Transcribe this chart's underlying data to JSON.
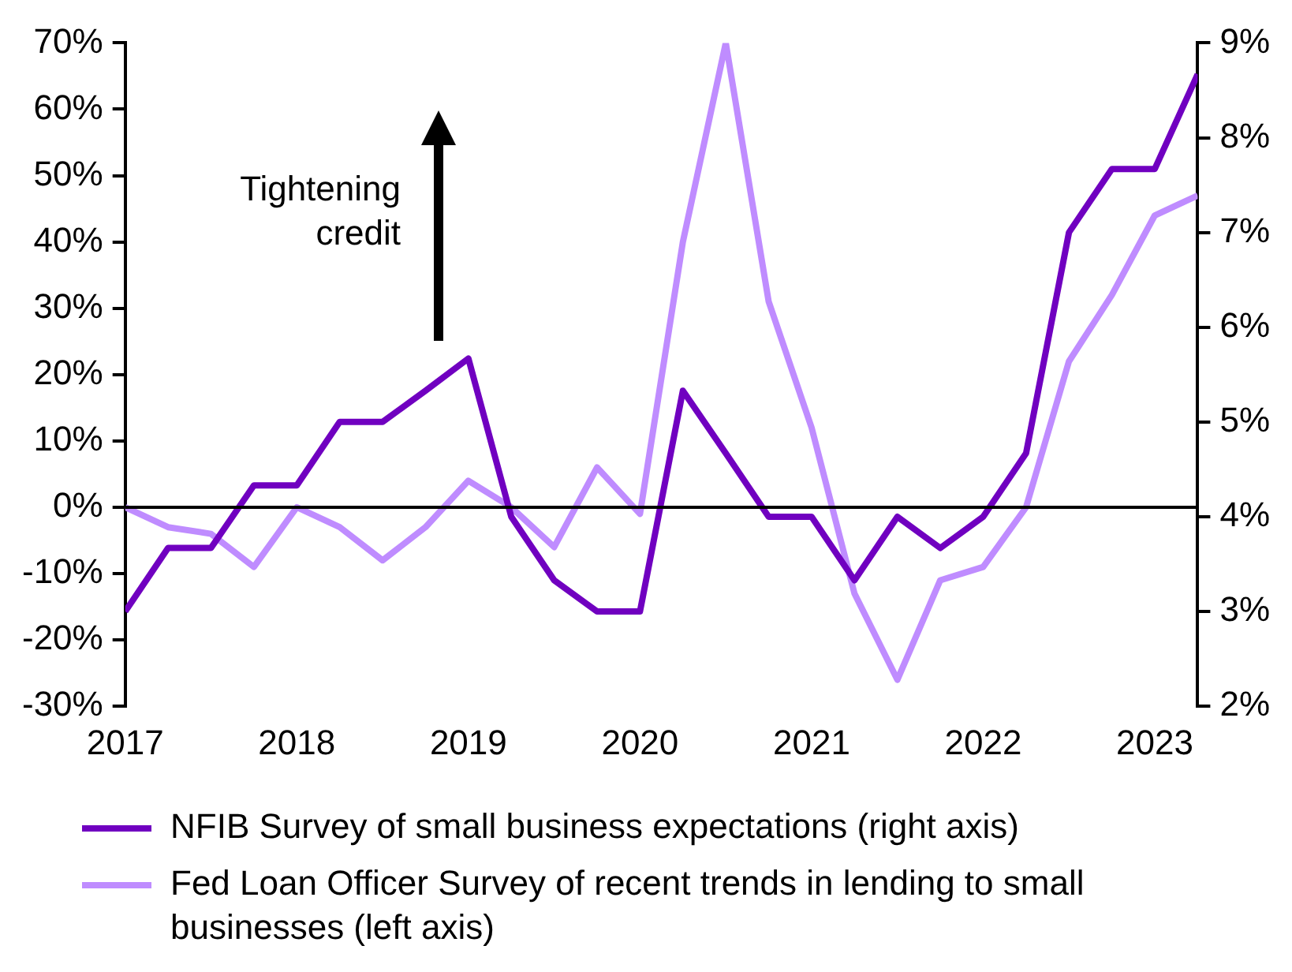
{
  "chart_data": {
    "type": "line",
    "x": [
      2017,
      2017.25,
      2017.5,
      2017.75,
      2018,
      2018.25,
      2018.5,
      2018.75,
      2019,
      2019.25,
      2019.5,
      2019.75,
      2020,
      2020.25,
      2020.5,
      2020.75,
      2021,
      2021.25,
      2021.5,
      2021.75,
      2022,
      2022.25,
      2022.5,
      2022.75,
      2023,
      2023.25
    ],
    "series": [
      {
        "name": "NFIB Survey of small business expectations (right axis)",
        "color": "#7000c0",
        "axis": "y2",
        "values": [
          3.0,
          3.67,
          3.67,
          4.33,
          4.33,
          5.0,
          5.0,
          5.33,
          5.67,
          4.0,
          3.33,
          3.0,
          3.0,
          5.33,
          4.67,
          4.0,
          4.0,
          3.33,
          4.0,
          3.67,
          4.0,
          4.67,
          7.0,
          7.67,
          7.67,
          8.67
        ]
      },
      {
        "name": "Fed Loan Officer Survey of recent trends in lending to small businesses (left axis)",
        "color": "#bf8cff",
        "values": [
          0,
          -3,
          -4,
          -9,
          0,
          -3,
          -8,
          -3,
          4,
          0,
          -6,
          6,
          -1,
          40,
          70,
          31,
          12,
          -13,
          -26,
          -11,
          -9,
          0,
          22,
          32,
          44,
          47
        ]
      }
    ],
    "xlim": [
      2017,
      2023.25
    ],
    "xticks": [
      2017,
      2018,
      2019,
      2020,
      2021,
      2022,
      2023
    ],
    "ylim": [
      -30,
      70
    ],
    "yticks": [
      {
        "value": -30,
        "label": "-30%"
      },
      {
        "value": -20,
        "label": "-20%"
      },
      {
        "value": -10,
        "label": "-10%"
      },
      {
        "value": 0,
        "label": "0%"
      },
      {
        "value": 10,
        "label": "10%"
      },
      {
        "value": 20,
        "label": "20%"
      },
      {
        "value": 30,
        "label": "30%"
      },
      {
        "value": 40,
        "label": "40%"
      },
      {
        "value": 50,
        "label": "50%"
      },
      {
        "value": 60,
        "label": "60%"
      },
      {
        "value": 70,
        "label": "70%"
      }
    ],
    "y2lim": [
      2,
      9
    ],
    "y2ticks": [
      {
        "value": 2,
        "label": "2%"
      },
      {
        "value": 3,
        "label": "3%"
      },
      {
        "value": 4,
        "label": "4%"
      },
      {
        "value": 5,
        "label": "5%"
      },
      {
        "value": 6,
        "label": "6%"
      },
      {
        "value": 7,
        "label": "7%"
      },
      {
        "value": 8,
        "label": "8%"
      },
      {
        "value": 9,
        "label": "9%"
      }
    ],
    "ref_lines": [
      {
        "axis": "y",
        "value": 0,
        "color": "#000000"
      }
    ],
    "annotations": [
      "Tightening credit"
    ],
    "grid": false,
    "legend": "bottom",
    "marker": "none",
    "line_style": "solid"
  }
}
